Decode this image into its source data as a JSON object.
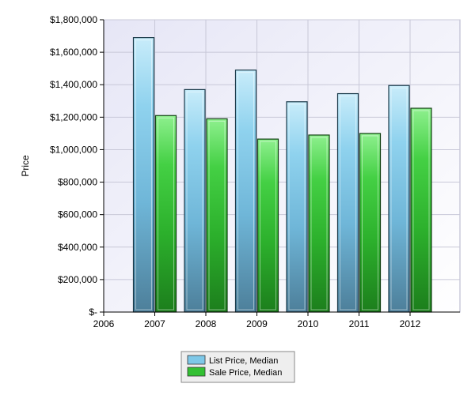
{
  "chart_data": {
    "type": "bar",
    "title": "",
    "xlabel": "",
    "ylabel": "Price",
    "categories": [
      "2007",
      "2008",
      "2009",
      "2010",
      "2011",
      "2012"
    ],
    "x_ticks": [
      "2006",
      "2007",
      "2008",
      "2009",
      "2010",
      "2011",
      "2012"
    ],
    "series": [
      {
        "name": "List Price, Median",
        "color": "#7ec8e8",
        "values": [
          1690000,
          1370000,
          1490000,
          1295000,
          1345000,
          1395000
        ]
      },
      {
        "name": "Sale Price, Median",
        "color": "#33c033",
        "values": [
          1210000,
          1190000,
          1065000,
          1090000,
          1100000,
          1255000
        ]
      }
    ],
    "ylim": [
      0,
      1800000
    ],
    "y_ticks": [
      0,
      200000,
      400000,
      600000,
      800000,
      1000000,
      1200000,
      1400000,
      1600000,
      1800000
    ],
    "y_tick_labels": [
      "$-",
      "$200,000",
      "$400,000",
      "$600,000",
      "$800,000",
      "$1,000,000",
      "$1,200,000",
      "$1,400,000",
      "$1,600,000",
      "$1,800,000"
    ],
    "grid": true,
    "legend_position": "bottom-center"
  }
}
